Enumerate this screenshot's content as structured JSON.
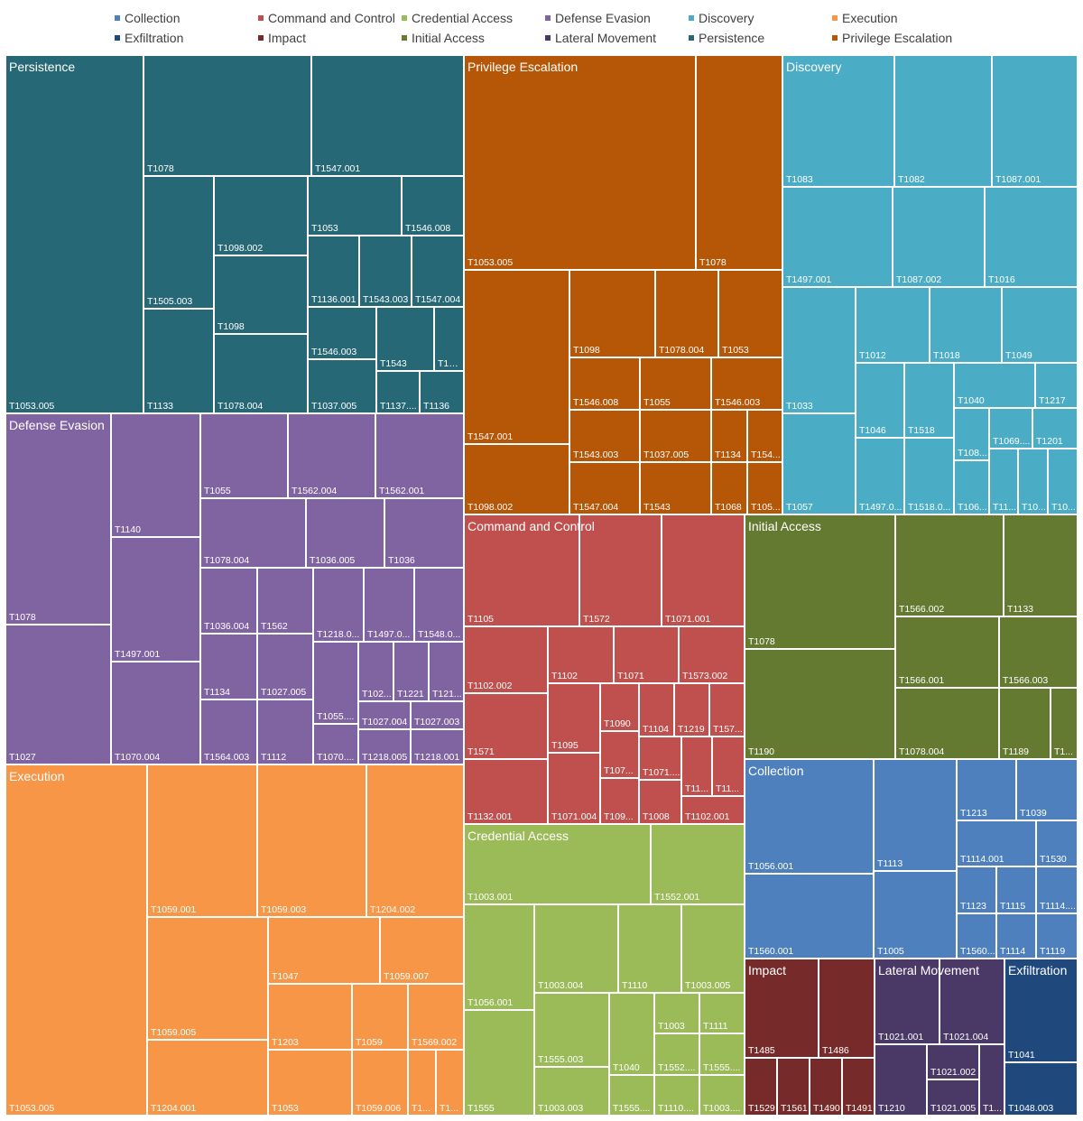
{
  "chart_data": {
    "type": "treemap",
    "legend": [
      {
        "name": "Collection",
        "color": "#4e80bd"
      },
      {
        "name": "Command and Control",
        "color": "#c0504d"
      },
      {
        "name": "Credential Access",
        "color": "#9bbb59"
      },
      {
        "name": "Defense Evasion",
        "color": "#8064a2"
      },
      {
        "name": "Discovery",
        "color": "#4bacc6"
      },
      {
        "name": "Execution",
        "color": "#f79646"
      },
      {
        "name": "Exfiltration",
        "color": "#1f497d"
      },
      {
        "name": "Impact",
        "color": "#772a2a"
      },
      {
        "name": "Initial Access",
        "color": "#647a31"
      },
      {
        "name": "Lateral Movement",
        "color": "#4a3966"
      },
      {
        "name": "Persistence",
        "color": "#276877"
      },
      {
        "name": "Privilege Escalation",
        "color": "#b65708"
      }
    ],
    "groups": [
      {
        "name": "Persistence",
        "color": "#276877",
        "label": "Persistence",
        "cells": [
          "T1053.005",
          "T1078",
          "T1547.001",
          "T1505.003",
          "T1133",
          "T1098.002",
          "T1098",
          "T1078.004",
          "T1053",
          "T1546.008",
          "T1136.001",
          "T1543.003",
          "T1547.004",
          "T1546.003",
          "T1543",
          "T1…",
          "T1037.005",
          "T1137....",
          "T1136"
        ]
      },
      {
        "name": "Privilege Escalation",
        "color": "#b65708",
        "label": "Privilege Escalation",
        "cells": [
          "T1053.005",
          "T1078",
          "T1547.001",
          "T1098.002",
          "T1098",
          "T1078.004",
          "T1053",
          "T1546.008",
          "T1055",
          "T1546.003",
          "T1543.003",
          "T1037.005",
          "T1134",
          "T154...",
          "T1547.004",
          "T1543",
          "T1068",
          "T105..."
        ]
      },
      {
        "name": "Discovery",
        "color": "#4bacc6",
        "label": "Discovery",
        "cells": [
          "T1083",
          "T1082",
          "T1087.001",
          "T1497.001",
          "T1087.002",
          "T1016",
          "T1033",
          "T1012",
          "T1018",
          "T1049",
          "T1046",
          "T1518",
          "T1040",
          "T1217",
          "T108...",
          "T1069....",
          "T1201",
          "T1057",
          "T1497.0...",
          "T1518.0...",
          "T106...",
          "T11...",
          "T10...",
          "T10..."
        ]
      },
      {
        "name": "Defense Evasion",
        "color": "#8064a2",
        "label": "Defense Evasion",
        "cells": [
          "T1078",
          "T1027",
          "T1140",
          "T1497.001",
          "T1070.004",
          "T1055",
          "T1562.004",
          "T1562.001",
          "T1078.004",
          "T1036.005",
          "T1036",
          "T1036.004",
          "T1562",
          "T1134",
          "T1027.005",
          "T1564.003",
          "T1112",
          "T1218.0...",
          "T1497.0...",
          "T1548.0...",
          "T1055....",
          "T102...",
          "T1221",
          "T121...",
          "T1027.004",
          "T1027.003",
          "T1070....",
          "T1218.005",
          "T1218.001"
        ]
      },
      {
        "name": "Command and Control",
        "color": "#c0504d",
        "label": "Command and Control",
        "cells": [
          "T1105",
          "T1572",
          "T1071.001",
          "T1102.002",
          "T1102",
          "T1071",
          "T1573.002",
          "T1571",
          "T1095",
          "T1090",
          "T1104",
          "T1219",
          "T157...",
          "T107...",
          "T1071....",
          "T1132.001",
          "T1071.004",
          "T109...",
          "T1008",
          "T11...",
          "T11...",
          "T1102.001"
        ]
      },
      {
        "name": "Initial Access",
        "color": "#647a31",
        "label": "Initial Access",
        "cells": [
          "T1078",
          "T1566.002",
          "T1133",
          "T1190",
          "T1566.001",
          "T1566.003",
          "T1078.004",
          "T1189",
          "T1..."
        ]
      },
      {
        "name": "Execution",
        "color": "#f79646",
        "label": "Execution",
        "cells": [
          "T1053.005",
          "T1059.001",
          "T1059.003",
          "T1204.002",
          "T1059.005",
          "T1047",
          "T1059.007",
          "T1204.001",
          "T1203",
          "T1059",
          "T1569.002",
          "T1053",
          "T1059.006",
          "T1...",
          "T1..."
        ]
      },
      {
        "name": "Credential Access",
        "color": "#9bbb59",
        "label": "Credential Access",
        "cells": [
          "T1003.001",
          "T1552.001",
          "T1056.001",
          "T1003.004",
          "T1110",
          "T1003.005",
          "T1555",
          "T1555.003",
          "T1003.003",
          "T1040",
          "T1003",
          "T1111",
          "T1552....",
          "T1555....",
          "T1555....",
          "T1110....",
          "T1003...."
        ]
      },
      {
        "name": "Collection",
        "color": "#4e80bd",
        "label": "Collection",
        "cells": [
          "T1056.001",
          "T1113",
          "T1213",
          "T1039",
          "T1114.001",
          "T1530",
          "T1560.001",
          "T1005",
          "T1123",
          "T1115",
          "T1114....",
          "T1560....",
          "T1114",
          "T1119"
        ]
      },
      {
        "name": "Impact",
        "color": "#772a2a",
        "label": "Impact",
        "cells": [
          "T1485",
          "T1486",
          "T1529",
          "T1561",
          "T1490",
          "T1491"
        ]
      },
      {
        "name": "Lateral Movement",
        "color": "#4a3966",
        "label": "Lateral Movement",
        "cells": [
          "T1021.001",
          "T1021.004",
          "T1210",
          "T1021.002",
          "T1021.005",
          "T1..."
        ]
      },
      {
        "name": "Exfiltration",
        "color": "#1f497d",
        "label": "Exfiltration",
        "cells": [
          "T1041",
          "T1048.003"
        ]
      }
    ]
  }
}
